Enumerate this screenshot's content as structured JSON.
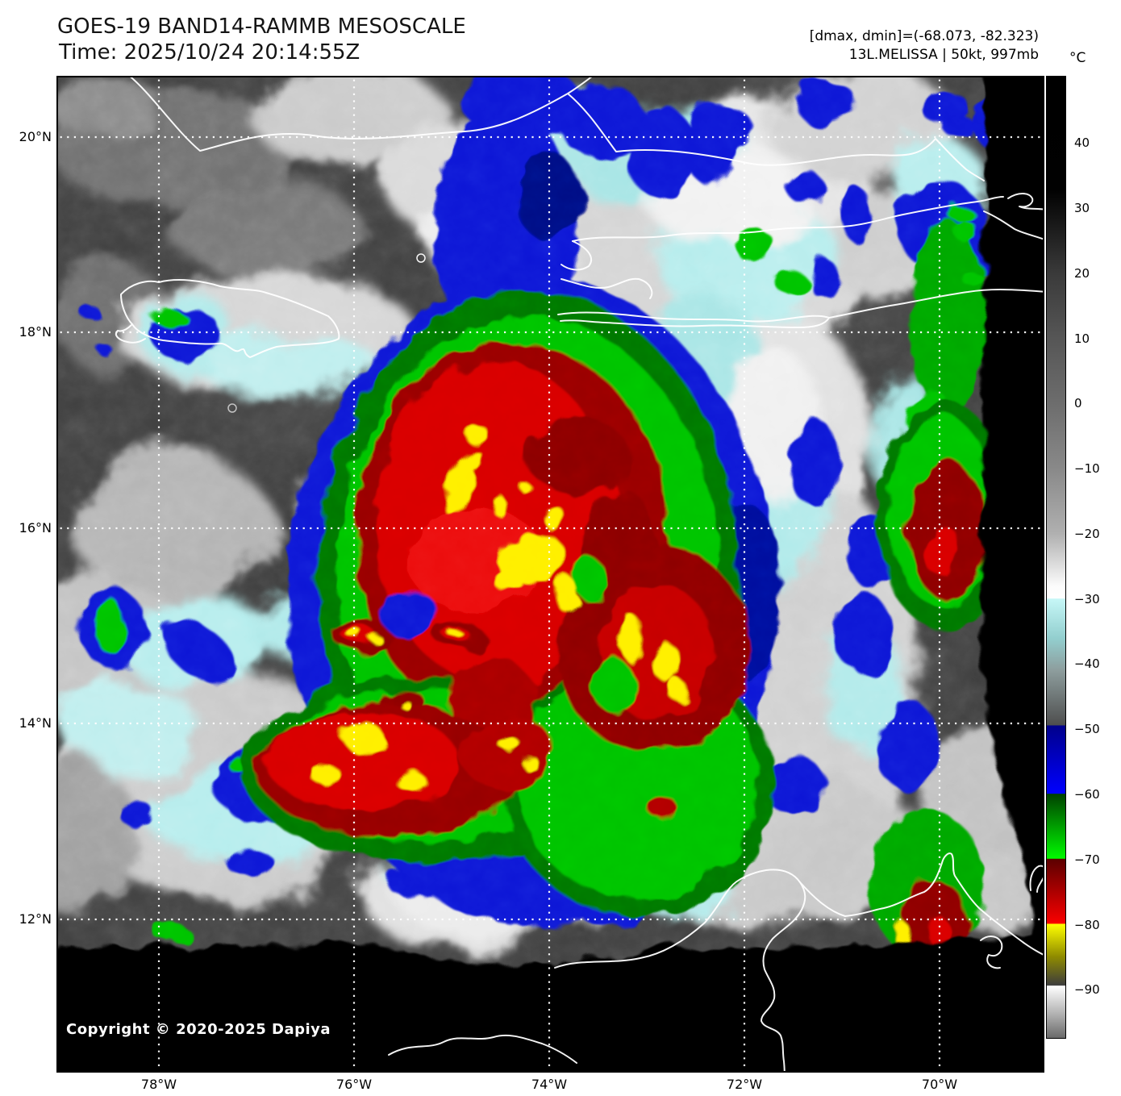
{
  "header": {
    "title": "GOES-19 BAND14-RAMMB MESOSCALE",
    "time": "Time: 2025/10/24 20:14:55Z",
    "dmax_dmin": "[dmax, dmin]=(-68.073, -82.323)",
    "storm": "13L.MELISSA | 50kt, 997mb"
  },
  "map_overlay": {
    "copyright": "Copyright © 2020-2025 Dapiya"
  },
  "axes": {
    "lat_labels": [
      "20°N",
      "18°N",
      "16°N",
      "14°N",
      "12°N"
    ],
    "lon_labels": [
      "78°W",
      "76°W",
      "74°W",
      "72°W",
      "70°W"
    ]
  },
  "colorbar": {
    "unit": "°C",
    "tick_labels": [
      "40",
      "30",
      "20",
      "10",
      "0",
      "−10",
      "−20",
      "−30",
      "−40",
      "−50",
      "−60",
      "−70",
      "−80",
      "−90"
    ],
    "tick_values": [
      40,
      30,
      20,
      10,
      0,
      -10,
      -20,
      -30,
      -40,
      -50,
      -60,
      -70,
      -80,
      -90
    ],
    "scale_top_c": 50.3,
    "scale_bottom_c": -97.5,
    "gradient_stops": [
      [
        50.3,
        "#000000"
      ],
      [
        33,
        "#010101"
      ],
      [
        20,
        "#3a3a3a"
      ],
      [
        10,
        "#565656"
      ],
      [
        0,
        "#6d6d6d"
      ],
      [
        -10,
        "#898989"
      ],
      [
        -20,
        "#b0b0b0"
      ],
      [
        -28,
        "#fbfbfb"
      ],
      [
        -29.9,
        "#ffffff"
      ],
      [
        -30,
        "#c6f7f7"
      ],
      [
        -36,
        "#93cfcf"
      ],
      [
        -41,
        "#8d9d9d"
      ],
      [
        -49.4,
        "#4e4e4e"
      ],
      [
        -49.5,
        "#00008b"
      ],
      [
        -59.9,
        "#0000ff"
      ],
      [
        -60,
        "#004100"
      ],
      [
        -69.9,
        "#00fa00"
      ],
      [
        -70,
        "#5c0000"
      ],
      [
        -79.9,
        "#fa0000"
      ],
      [
        -80,
        "#ffff00"
      ],
      [
        -85,
        "#8f8b00"
      ],
      [
        -89.4,
        "#3c3c3c"
      ],
      [
        -89.5,
        "#ffffff"
      ],
      [
        -94,
        "#aeaeae"
      ],
      [
        -97.5,
        "#6a6a6a"
      ]
    ]
  },
  "palette": {
    "clear_sky_gray": "#3d3d3d",
    "cloud_gray": "#c8c8c8",
    "cirrus_cyan": "#aae8e8",
    "cold_blue": "#0713d6",
    "cold_navy": "#000f9e",
    "cold_green_bright": "#06c306",
    "cold_green_dark": "#037703",
    "cold_red_bright": "#d80404",
    "cold_red_dark": "#8e0101",
    "cold_yellow": "#ffef04",
    "no_data_black": "#010101",
    "coastline_white": "#ffffff"
  },
  "chart_data": {
    "type": "heatmap",
    "title": "GOES-19 BAND14-RAMMB MESOSCALE",
    "time_utc": "2025/10/24 20:14:55Z",
    "description": "Infrared (Band 14) brightness-temperature mesoscale sector image of Hurricane Melissa (13L) over the central Caribbean between Jamaica, eastern Cuba and Hispaniola, with colorized cold cloud tops",
    "lat_ticks_deg_n": [
      20,
      18,
      16,
      14,
      12
    ],
    "lon_ticks_deg_w": [
      78,
      76,
      74,
      72,
      70
    ],
    "value_unit": "°C",
    "value_range_shown": [
      40,
      -90
    ],
    "dmax_c": -68.073,
    "dmin_c": -82.323,
    "storm": {
      "atcf_id": "13L",
      "name": "MELISSA",
      "intensity_kt": "50kt",
      "pressure_mb": "997mb"
    },
    "legend_segments": [
      {
        "temp_c": [
          50,
          -30
        ],
        "style": "grayscale black to white (warm)"
      },
      {
        "temp_c": [
          -30,
          -40
        ],
        "style": "cyan"
      },
      {
        "temp_c": [
          -40,
          -49.5
        ],
        "style": "gray"
      },
      {
        "temp_c": [
          -49.5,
          -60
        ],
        "style": "navy to bright blue"
      },
      {
        "temp_c": [
          -60,
          -70
        ],
        "style": "dark to bright green"
      },
      {
        "temp_c": [
          -70,
          -80
        ],
        "style": "maroon to bright red"
      },
      {
        "temp_c": [
          -80,
          -89.5
        ],
        "style": "yellow to olive"
      },
      {
        "temp_c": [
          -89.5,
          -97.5
        ],
        "style": "white to gray (coldest)"
      }
    ]
  }
}
